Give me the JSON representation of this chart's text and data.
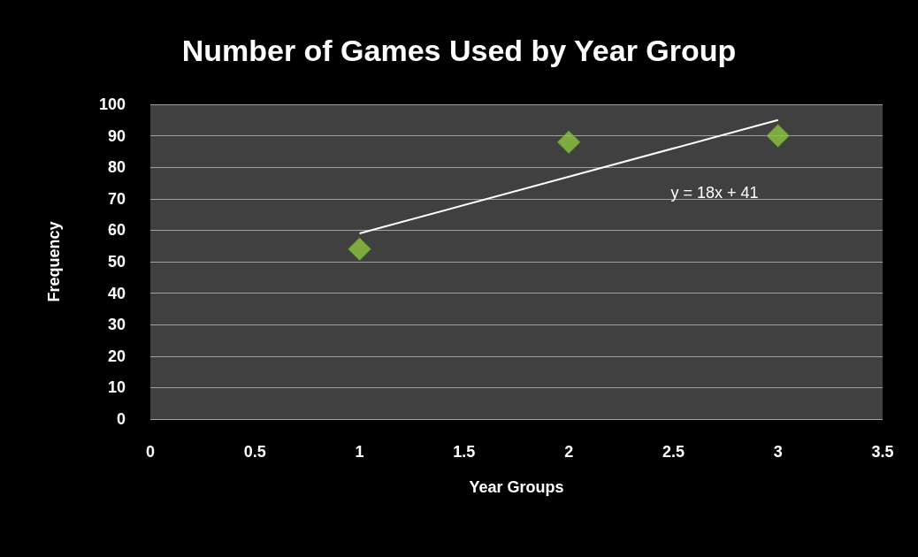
{
  "chart_data": {
    "type": "scatter",
    "title": "Number of Games Used by Year Group",
    "xlabel": "Year Groups",
    "ylabel": "Frequency",
    "x": [
      1,
      2,
      3
    ],
    "series": [
      {
        "color": "#8dc63f",
        "values": [
          54,
          88,
          90
        ],
        "marker": "diamond"
      },
      {
        "type": "line",
        "color": "#ffffff",
        "x": [
          1,
          3
        ],
        "values": [
          59,
          95
        ],
        "marker": "none"
      }
    ],
    "annotations": [
      "y = 18x + 41"
    ],
    "xlim": [
      0,
      3.5
    ],
    "xticks": [
      0,
      0.5,
      1,
      1.5,
      2,
      2.5,
      3,
      3.5
    ],
    "ylim": [
      0,
      100
    ],
    "yticks": [
      0,
      10,
      20,
      30,
      40,
      50,
      60,
      70,
      80,
      90,
      100
    ],
    "grid": "y"
  }
}
